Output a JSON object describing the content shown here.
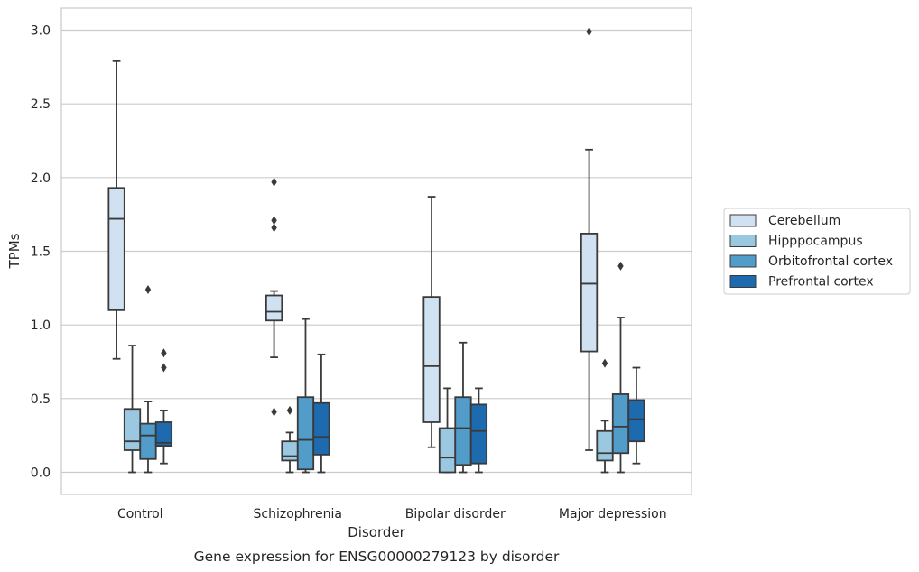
{
  "chart_data": {
    "type": "box",
    "title": "",
    "caption": "Gene expression for ENSG00000279123 by disorder",
    "xlabel": "Disorder",
    "ylabel": "TPMs",
    "ylim": [
      -0.15,
      3.15
    ],
    "yticks": [
      0.0,
      0.5,
      1.0,
      1.5,
      2.0,
      2.5,
      3.0
    ],
    "ytick_labels": [
      "0.0",
      "0.5",
      "1.0",
      "1.5",
      "2.0",
      "2.5",
      "3.0"
    ],
    "grid": "horizontal",
    "legend_position": "right",
    "categories": [
      "Control",
      "Schizophrenia",
      "Bipolar disorder",
      "Major depression"
    ],
    "series": [
      {
        "name": "Cerebellum",
        "color": "#d0e1f2",
        "boxes": [
          {
            "whisker_low": 0.77,
            "q1": 1.1,
            "median": 1.72,
            "q3": 1.93,
            "whisker_high": 2.79,
            "outliers": []
          },
          {
            "whisker_low": 0.78,
            "q1": 1.03,
            "median": 1.09,
            "q3": 1.2,
            "whisker_high": 1.23,
            "outliers": [
              1.97,
              1.71,
              1.66,
              0.41
            ]
          },
          {
            "whisker_low": 0.17,
            "q1": 0.34,
            "median": 0.72,
            "q3": 1.19,
            "whisker_high": 1.87,
            "outliers": []
          },
          {
            "whisker_low": 0.15,
            "q1": 0.82,
            "median": 1.28,
            "q3": 1.62,
            "whisker_high": 2.19,
            "outliers": [
              2.99
            ]
          }
        ]
      },
      {
        "name": "Hipppocampus",
        "color": "#9ac8e0",
        "boxes": [
          {
            "whisker_low": 0.0,
            "q1": 0.15,
            "median": 0.21,
            "q3": 0.43,
            "whisker_high": 0.86,
            "outliers": []
          },
          {
            "whisker_low": 0.0,
            "q1": 0.08,
            "median": 0.11,
            "q3": 0.21,
            "whisker_high": 0.27,
            "outliers": [
              0.42
            ]
          },
          {
            "whisker_low": 0.0,
            "q1": 0.0,
            "median": 0.1,
            "q3": 0.3,
            "whisker_high": 0.57,
            "outliers": []
          },
          {
            "whisker_low": 0.0,
            "q1": 0.08,
            "median": 0.13,
            "q3": 0.28,
            "whisker_high": 0.35,
            "outliers": [
              0.74
            ]
          }
        ]
      },
      {
        "name": "Orbitofrontal cortex",
        "color": "#519cc9",
        "boxes": [
          {
            "whisker_low": 0.0,
            "q1": 0.09,
            "median": 0.25,
            "q3": 0.33,
            "whisker_high": 0.48,
            "outliers": [
              1.24
            ]
          },
          {
            "whisker_low": 0.0,
            "q1": 0.02,
            "median": 0.22,
            "q3": 0.51,
            "whisker_high": 1.04,
            "outliers": []
          },
          {
            "whisker_low": 0.0,
            "q1": 0.05,
            "median": 0.3,
            "q3": 0.51,
            "whisker_high": 0.88,
            "outliers": []
          },
          {
            "whisker_low": 0.0,
            "q1": 0.13,
            "median": 0.31,
            "q3": 0.53,
            "whisker_high": 1.05,
            "outliers": [
              1.4
            ]
          }
        ]
      },
      {
        "name": "Prefrontal cortex",
        "color": "#1d6aaf",
        "boxes": [
          {
            "whisker_low": 0.06,
            "q1": 0.18,
            "median": 0.2,
            "q3": 0.34,
            "whisker_high": 0.42,
            "outliers": [
              0.81,
              0.71
            ]
          },
          {
            "whisker_low": 0.0,
            "q1": 0.12,
            "median": 0.24,
            "q3": 0.47,
            "whisker_high": 0.8,
            "outliers": []
          },
          {
            "whisker_low": 0.0,
            "q1": 0.06,
            "median": 0.28,
            "q3": 0.46,
            "whisker_high": 0.57,
            "outliers": []
          },
          {
            "whisker_low": 0.06,
            "q1": 0.21,
            "median": 0.36,
            "q3": 0.49,
            "whisker_high": 0.71,
            "outliers": []
          }
        ]
      }
    ]
  }
}
